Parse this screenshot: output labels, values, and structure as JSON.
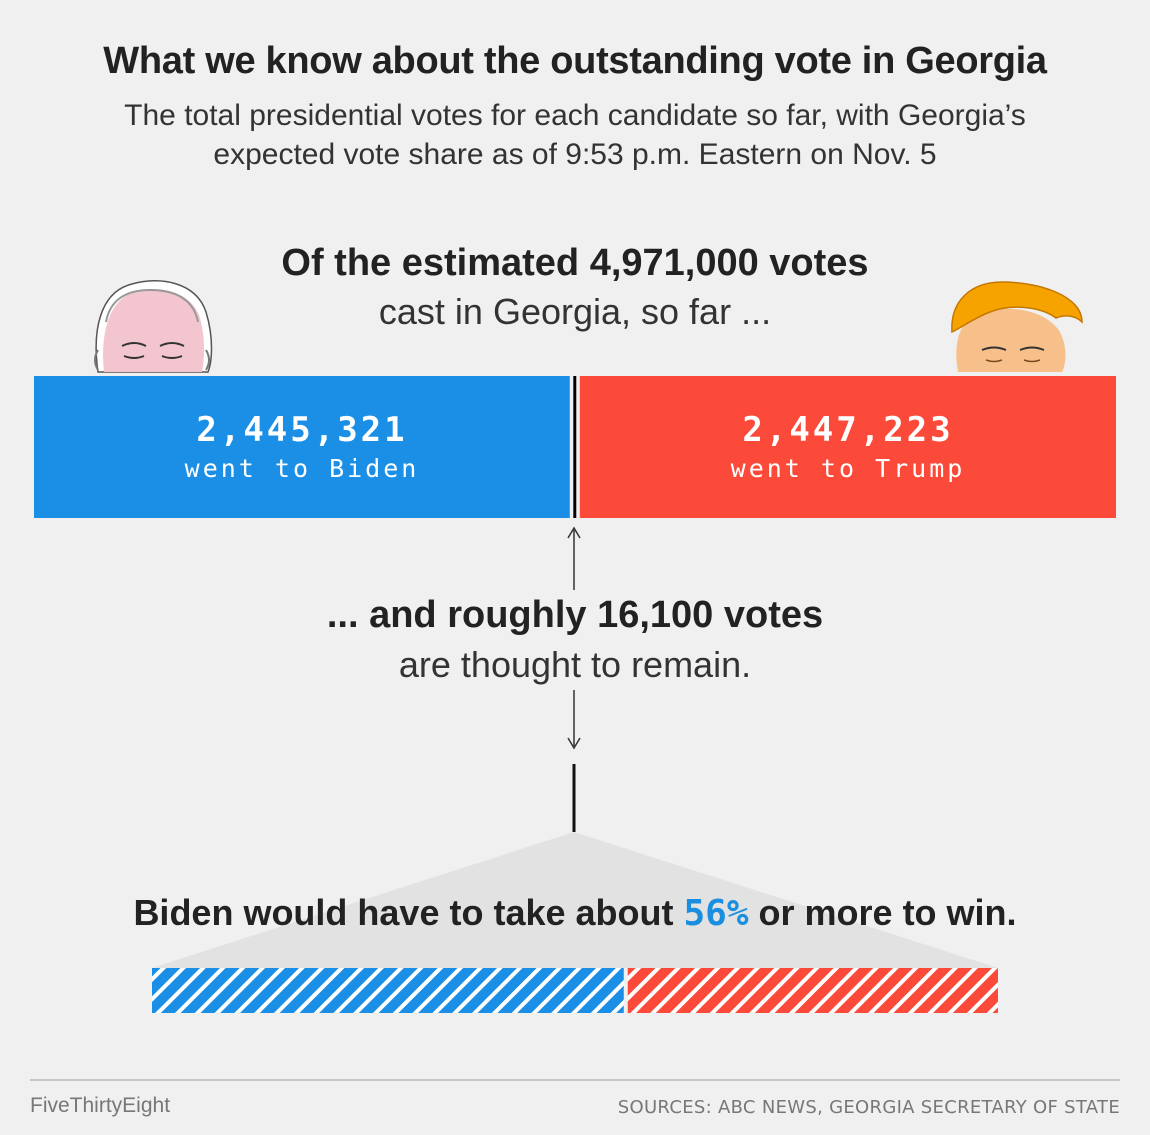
{
  "header": {
    "title": "What we know about the outstanding vote in Georgia",
    "subtitle": "The total presidential votes for each candidate so far, with Georgia’s expected vote share as of 9:53 p.m. Eastern on Nov. 5"
  },
  "estimate": {
    "headline": "Of the estimated 4,971,000 votes",
    "subline": "cast in Georgia, so far ..."
  },
  "chart_data": {
    "type": "bar",
    "title": "Votes cast in Georgia so far",
    "categories": [
      "Biden",
      "Trump"
    ],
    "values": [
      2445321,
      2447223
    ],
    "labels": [
      "went to Biden",
      "went to Trump"
    ],
    "value_labels": [
      "2,445,321",
      "2,447,223"
    ],
    "colors": [
      "#1b8fe6",
      "#fc4a3a"
    ],
    "remaining_votes": 16100,
    "biden_needed_share_pct": 56
  },
  "remaining": {
    "headline": "... and roughly 16,100 votes",
    "subline": "are thought to remain."
  },
  "needed": {
    "prefix": "Biden would have to take about ",
    "pct": "56%",
    "suffix": " or more to win."
  },
  "footer": {
    "brand": "FiveThirtyEight",
    "sources": "SOURCES: ABC NEWS, GEORGIA SECRETARY OF STATE"
  }
}
